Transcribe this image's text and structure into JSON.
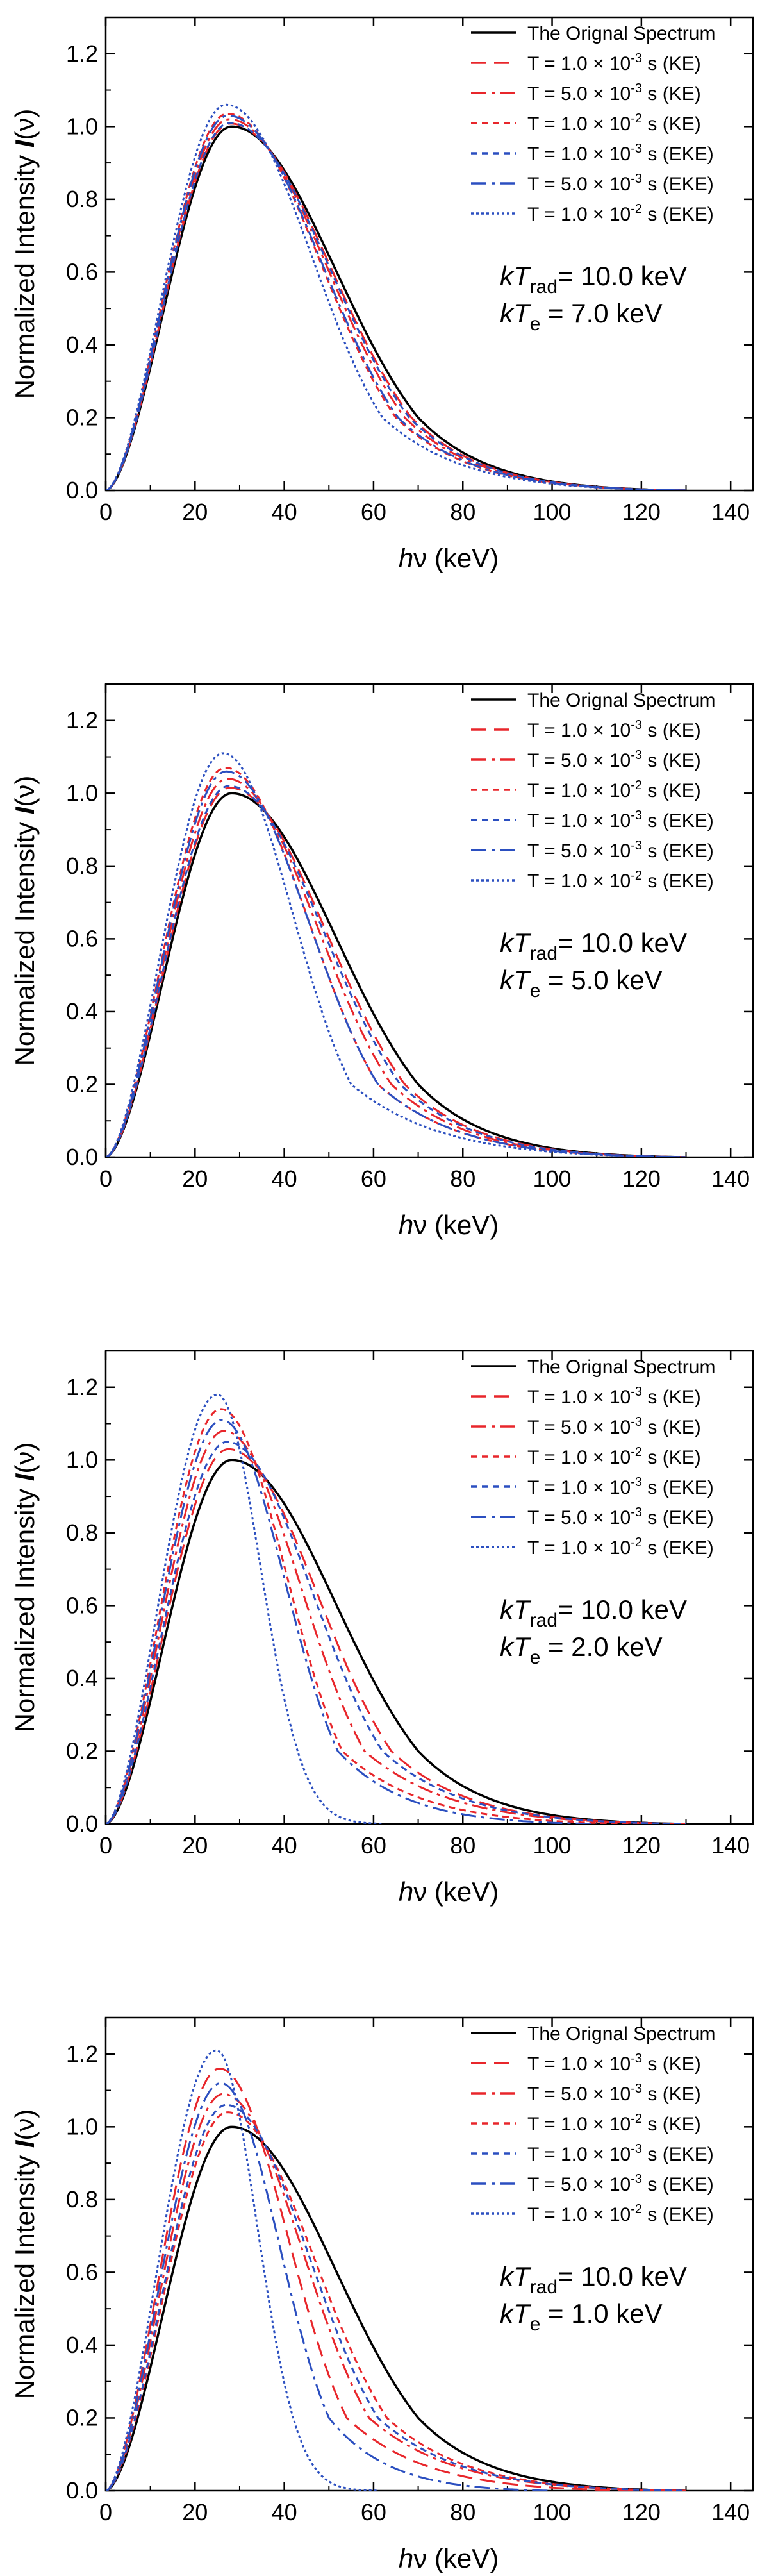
{
  "figure": {
    "panels_count": 4
  },
  "chart_data": [
    {
      "type": "line",
      "panel_label": "kT_rad 10.0 keV, kT_e 7.0 keV",
      "xlabel": {
        "h": "h",
        "nu": "ν",
        "unit": "(keV)"
      },
      "ylabel": {
        "prefix": "Normalized Intensity ",
        "I": "I",
        "arg": "(ν)"
      },
      "xlim": [
        0,
        145
      ],
      "ylim": [
        0,
        1.3
      ],
      "xticks": [
        0,
        20,
        40,
        60,
        80,
        100,
        120,
        140
      ],
      "xtick_labels": [
        "0",
        "20",
        "40",
        "60",
        "80",
        "100",
        "120",
        "140"
      ],
      "yticks": [
        0.0,
        0.2,
        0.4,
        0.6,
        0.8,
        1.0,
        1.2
      ],
      "ytick_labels": [
        "0.0",
        "0.2",
        "0.4",
        "0.6",
        "0.8",
        "1.0",
        "1.2"
      ],
      "annotation": {
        "line1": {
          "k": "k",
          "T": "T",
          "sub": "rad",
          "rest": "= 10.0 keV"
        },
        "line2": {
          "k": "k",
          "T": "T",
          "sub": "e",
          "rest": " = 7.0 keV"
        }
      },
      "legend_position": "top-right",
      "series": [
        {
          "name": "The Orignal Spectrum",
          "color": "#000000",
          "style": "solid",
          "peak_x": 28.2,
          "peak_y": 1.0,
          "tail_x_at_0_2": 70,
          "x_end": 130
        },
        {
          "name": "T = 1.0 × 10−3 s (KE)",
          "color": "#e8262b",
          "style": "dash",
          "peak_x": 27.9,
          "peak_y": 1.008,
          "tail_x_at_0_2": 68.5,
          "x_end": 130
        },
        {
          "name": "T = 5.0 × 10−3 s (KE)",
          "color": "#e8262b",
          "style": "dashdot",
          "peak_x": 27.6,
          "peak_y": 1.02,
          "tail_x_at_0_2": 67,
          "x_end": 130
        },
        {
          "name": "T = 1.0 × 10−2 s (KE)",
          "color": "#e8262b",
          "style": "shortdash",
          "peak_x": 27.3,
          "peak_y": 1.035,
          "tail_x_at_0_2": 65,
          "x_end": 130
        },
        {
          "name": "T = 1.0 × 10−3 s (EKE)",
          "color": "#2b4fc0",
          "style": "shortdash",
          "peak_x": 27.8,
          "peak_y": 1.01,
          "tail_x_at_0_2": 68,
          "x_end": 130
        },
        {
          "name": "T = 5.0 × 10−3 s (EKE)",
          "color": "#2b4fc0",
          "style": "dashdot",
          "peak_x": 27.4,
          "peak_y": 1.03,
          "tail_x_at_0_2": 65.5,
          "x_end": 130
        },
        {
          "name": "T = 1.0 × 10−2 s (EKE)",
          "color": "#2b4fc0",
          "style": "dot",
          "peak_x": 27.0,
          "peak_y": 1.06,
          "tail_x_at_0_2": 62,
          "x_end": 130
        }
      ],
      "legend": [
        {
          "text": "The Orignal Spectrum"
        },
        {
          "pre": "T = 1.0 × 10",
          "exp": "-3",
          "post": " s (KE)"
        },
        {
          "pre": "T = 5.0 × 10",
          "exp": "-3",
          "post": " s (KE)"
        },
        {
          "pre": "T = 1.0 × 10",
          "exp": "-2",
          "post": " s (KE)"
        },
        {
          "pre": "T = 1.0 × 10",
          "exp": "-3",
          "post": " s (EKE)"
        },
        {
          "pre": "T = 5.0 × 10",
          "exp": "-3",
          "post": " s (EKE)"
        },
        {
          "pre": "T = 1.0 × 10",
          "exp": "-2",
          "post": " s (EKE)"
        }
      ]
    },
    {
      "type": "line",
      "panel_label": "kT_rad 10.0 keV, kT_e 5.0 keV",
      "xlabel": {
        "h": "h",
        "nu": "ν",
        "unit": "(keV)"
      },
      "ylabel": {
        "prefix": "Normalized Intensity ",
        "I": "I",
        "arg": "(ν)"
      },
      "xlim": [
        0,
        145
      ],
      "ylim": [
        0,
        1.3
      ],
      "xticks": [
        0,
        20,
        40,
        60,
        80,
        100,
        120,
        140
      ],
      "xtick_labels": [
        "0",
        "20",
        "40",
        "60",
        "80",
        "100",
        "120",
        "140"
      ],
      "yticks": [
        0.0,
        0.2,
        0.4,
        0.6,
        0.8,
        1.0,
        1.2
      ],
      "ytick_labels": [
        "0.0",
        "0.2",
        "0.4",
        "0.6",
        "0.8",
        "1.0",
        "1.2"
      ],
      "annotation": {
        "line1": {
          "k": "k",
          "T": "T",
          "sub": "rad",
          "rest": "= 10.0 keV"
        },
        "line2": {
          "k": "k",
          "T": "T",
          "sub": "e",
          "rest": " = 5.0 keV"
        }
      },
      "legend_position": "top-right",
      "series": [
        {
          "name": "The Orignal Spectrum",
          "color": "#000000",
          "style": "solid",
          "peak_x": 28.2,
          "peak_y": 1.0,
          "tail_x_at_0_2": 70,
          "x_end": 130
        },
        {
          "name": "T = 1.0 × 10−3 s (KE)",
          "color": "#e8262b",
          "style": "dash",
          "peak_x": 27.8,
          "peak_y": 1.015,
          "tail_x_at_0_2": 67,
          "x_end": 130
        },
        {
          "name": "T = 5.0 × 10−3 s (KE)",
          "color": "#e8262b",
          "style": "dashdot",
          "peak_x": 27.3,
          "peak_y": 1.04,
          "tail_x_at_0_2": 64,
          "x_end": 130
        },
        {
          "name": "T = 1.0 × 10−2 s (KE)",
          "color": "#e8262b",
          "style": "shortdash",
          "peak_x": 26.8,
          "peak_y": 1.07,
          "tail_x_at_0_2": 61,
          "x_end": 130
        },
        {
          "name": "T = 1.0 × 10−3 s (EKE)",
          "color": "#2b4fc0",
          "style": "shortdash",
          "peak_x": 27.6,
          "peak_y": 1.02,
          "tail_x_at_0_2": 66,
          "x_end": 130
        },
        {
          "name": "T = 5.0 × 10−3 s (EKE)",
          "color": "#2b4fc0",
          "style": "dashdot",
          "peak_x": 27.0,
          "peak_y": 1.06,
          "tail_x_at_0_2": 61,
          "x_end": 130
        },
        {
          "name": "T = 1.0 × 10−2 s (EKE)",
          "color": "#2b4fc0",
          "style": "dot",
          "peak_x": 26.3,
          "peak_y": 1.11,
          "tail_x_at_0_2": 55,
          "x_end": 130
        }
      ],
      "legend": [
        {
          "text": "The Orignal Spectrum"
        },
        {
          "pre": "T = 1.0 × 10",
          "exp": "-3",
          "post": " s (KE)"
        },
        {
          "pre": "T = 5.0 × 10",
          "exp": "-3",
          "post": " s (KE)"
        },
        {
          "pre": "T = 1.0 × 10",
          "exp": "-2",
          "post": " s (KE)"
        },
        {
          "pre": "T = 1.0 × 10",
          "exp": "-3",
          "post": " s (EKE)"
        },
        {
          "pre": "T = 5.0 × 10",
          "exp": "-3",
          "post": " s (EKE)"
        },
        {
          "pre": "T = 1.0 × 10",
          "exp": "-2",
          "post": " s (EKE)"
        }
      ]
    },
    {
      "type": "line",
      "panel_label": "kT_rad 10.0 keV, kT_e 2.0 keV",
      "xlabel": {
        "h": "h",
        "nu": "ν",
        "unit": "(keV)"
      },
      "ylabel": {
        "prefix": "Normalized Intensity ",
        "I": "I",
        "arg": "(ν)"
      },
      "xlim": [
        0,
        145
      ],
      "ylim": [
        0,
        1.3
      ],
      "xticks": [
        0,
        20,
        40,
        60,
        80,
        100,
        120,
        140
      ],
      "xtick_labels": [
        "0",
        "20",
        "40",
        "60",
        "80",
        "100",
        "120",
        "140"
      ],
      "yticks": [
        0.0,
        0.2,
        0.4,
        0.6,
        0.8,
        1.0,
        1.2
      ],
      "ytick_labels": [
        "0.0",
        "0.2",
        "0.4",
        "0.6",
        "0.8",
        "1.0",
        "1.2"
      ],
      "annotation": {
        "line1": {
          "k": "k",
          "T": "T",
          "sub": "rad",
          "rest": "= 10.0 keV"
        },
        "line2": {
          "k": "k",
          "T": "T",
          "sub": "e",
          "rest": " = 2.0 keV"
        }
      },
      "legend_position": "top-right",
      "series": [
        {
          "name": "The Orignal Spectrum",
          "color": "#000000",
          "style": "solid",
          "peak_x": 28.2,
          "peak_y": 1.0,
          "tail_x_at_0_2": 70,
          "x_end": 130
        },
        {
          "name": "T = 1.0 × 10−3 s (KE)",
          "color": "#e8262b",
          "style": "dash",
          "peak_x": 27.5,
          "peak_y": 1.03,
          "tail_x_at_0_2": 64,
          "x_end": 130
        },
        {
          "name": "T = 5.0 × 10−3 s (KE)",
          "color": "#e8262b",
          "style": "dashdot",
          "peak_x": 26.5,
          "peak_y": 1.08,
          "tail_x_at_0_2": 58,
          "x_end": 130
        },
        {
          "name": "T = 1.0 × 10−2 s (KE)",
          "color": "#e8262b",
          "style": "shortdash",
          "peak_x": 25.8,
          "peak_y": 1.14,
          "tail_x_at_0_2": 53,
          "x_end": 120
        },
        {
          "name": "T = 1.0 × 10−3 s (EKE)",
          "color": "#2b4fc0",
          "style": "shortdash",
          "peak_x": 27.2,
          "peak_y": 1.05,
          "tail_x_at_0_2": 62,
          "x_end": 130
        },
        {
          "name": "T = 5.0 × 10−3 s (EKE)",
          "color": "#2b4fc0",
          "style": "dashdot",
          "peak_x": 26.0,
          "peak_y": 1.11,
          "tail_x_at_0_2": 52,
          "x_end": 110
        },
        {
          "name": "T = 1.0 × 10−2 s (EKE)",
          "color": "#2b4fc0",
          "style": "dot",
          "peak_x": 25.0,
          "peak_y": 1.18,
          "tail_x_at_0_2": 43,
          "x_end": 62
        }
      ],
      "legend": [
        {
          "text": "The Orignal Spectrum"
        },
        {
          "pre": "T = 1.0 × 10",
          "exp": "-3",
          "post": " s (KE)"
        },
        {
          "pre": "T = 5.0 × 10",
          "exp": "-3",
          "post": " s (KE)"
        },
        {
          "pre": "T = 1.0 × 10",
          "exp": "-2",
          "post": " s (KE)"
        },
        {
          "pre": "T = 1.0 × 10",
          "exp": "-3",
          "post": " s (EKE)"
        },
        {
          "pre": "T = 5.0 × 10",
          "exp": "-3",
          "post": " s (EKE)"
        },
        {
          "pre": "T = 1.0 × 10",
          "exp": "-2",
          "post": " s (EKE)"
        }
      ]
    },
    {
      "type": "line",
      "panel_label": "kT_rad 10.0 keV, kT_e 1.0 keV",
      "xlabel": {
        "h": "h",
        "nu": "ν",
        "unit": "(keV)"
      },
      "ylabel": {
        "prefix": "Normalized Intensity ",
        "I": "I",
        "arg": "(ν)"
      },
      "xlim": [
        0,
        145
      ],
      "ylim": [
        0,
        1.3
      ],
      "xticks": [
        0,
        20,
        40,
        60,
        80,
        100,
        120,
        140
      ],
      "xtick_labels": [
        "0",
        "20",
        "40",
        "60",
        "80",
        "100",
        "120",
        "140"
      ],
      "yticks": [
        0.0,
        0.2,
        0.4,
        0.6,
        0.8,
        1.0,
        1.2
      ],
      "ytick_labels": [
        "0.0",
        "0.2",
        "0.4",
        "0.6",
        "0.8",
        "1.0",
        "1.2"
      ],
      "annotation": {
        "line1": {
          "k": "k",
          "T": "T",
          "sub": "rad",
          "rest": "= 10.0 keV"
        },
        "line2": {
          "k": "k",
          "T": "T",
          "sub": "e",
          "rest": " = 1.0 keV"
        }
      },
      "legend_position": "top-right",
      "series": [
        {
          "name": "The Orignal Spectrum",
          "color": "#000000",
          "style": "solid",
          "peak_x": 28.2,
          "peak_y": 1.0,
          "tail_x_at_0_2": 70,
          "x_end": 130
        },
        {
          "name": "T = 1.0 × 10−3 s (KE)",
          "color": "#e8262b",
          "style": "dash",
          "peak_x": 25.5,
          "peak_y": 1.16,
          "tail_x_at_0_2": 54,
          "x_end": 120
        },
        {
          "name": "T = 5.0 × 10−3 s (KE)",
          "color": "#e8262b",
          "style": "dashdot",
          "peak_x": 26.3,
          "peak_y": 1.09,
          "tail_x_at_0_2": 59,
          "x_end": 130
        },
        {
          "name": "T = 1.0 × 10−2 s (KE)",
          "color": "#e8262b",
          "style": "shortdash",
          "peak_x": 27.3,
          "peak_y": 1.04,
          "tail_x_at_0_2": 63,
          "x_end": 130
        },
        {
          "name": "T = 1.0 × 10−3 s (EKE)",
          "color": "#2b4fc0",
          "style": "shortdash",
          "peak_x": 27.0,
          "peak_y": 1.06,
          "tail_x_at_0_2": 61,
          "x_end": 130
        },
        {
          "name": "T = 5.0 × 10−3 s (EKE)",
          "color": "#2b4fc0",
          "style": "dashdot",
          "peak_x": 25.8,
          "peak_y": 1.12,
          "tail_x_at_0_2": 50,
          "x_end": 100
        },
        {
          "name": "T = 1.0 × 10−2 s (EKE)",
          "color": "#2b4fc0",
          "style": "dot",
          "peak_x": 24.8,
          "peak_y": 1.21,
          "tail_x_at_0_2": 42,
          "x_end": 61
        }
      ],
      "legend": [
        {
          "text": "The Orignal Spectrum"
        },
        {
          "pre": "T = 1.0 × 10",
          "exp": "-3",
          "post": " s (KE)"
        },
        {
          "pre": "T = 5.0 × 10",
          "exp": "-3",
          "post": " s (KE)"
        },
        {
          "pre": "T = 1.0 × 10",
          "exp": "-2",
          "post": " s (KE)"
        },
        {
          "pre": "T = 1.0 × 10",
          "exp": "-3",
          "post": " s (EKE)"
        },
        {
          "pre": "T = 5.0 × 10",
          "exp": "-3",
          "post": " s (EKE)"
        },
        {
          "pre": "T = 1.0 × 10",
          "exp": "-2",
          "post": " s (EKE)"
        }
      ]
    }
  ]
}
